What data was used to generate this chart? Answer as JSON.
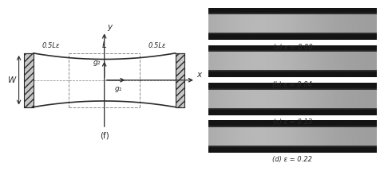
{
  "left_panel_label": "(f)",
  "labels": {
    "x_axis": "x",
    "y_axis": "y",
    "W": "W",
    "L": "L",
    "g1": "g₁",
    "g2": "g₂",
    "left_span": "0.5Lε",
    "right_span": "0.5Lε"
  },
  "photo_labels": [
    "(a) ε = 0.00",
    "(b) ε = 0.04",
    "(c) ε = 0.13",
    "(d) ε = 0.22"
  ],
  "line_color": "#2a2a2a",
  "dashed_color": "#888888",
  "font_size": 6.5
}
